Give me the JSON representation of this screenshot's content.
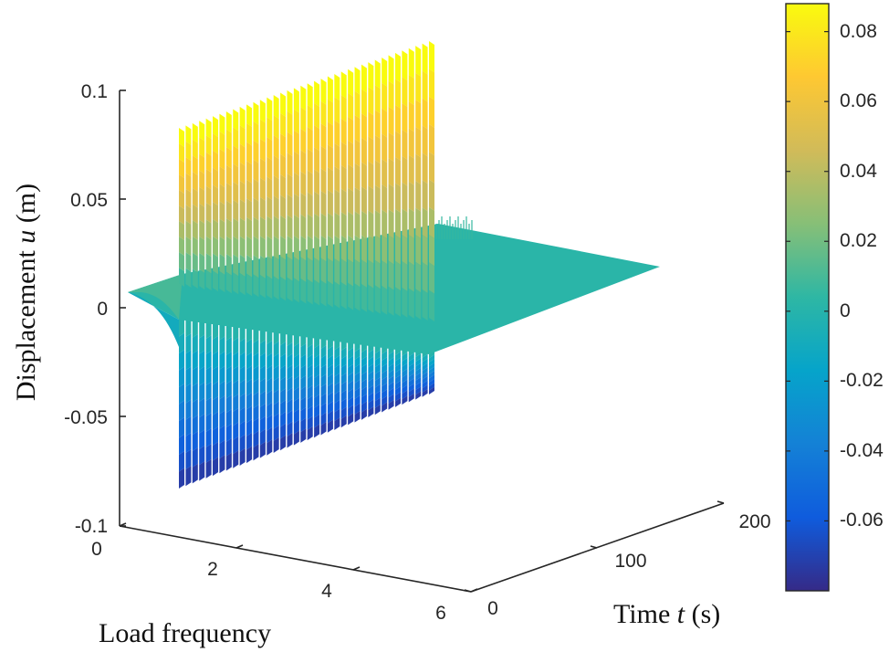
{
  "chart_data": {
    "type": "surface3d",
    "zlabel_text": "Displacement ",
    "zlabel_var": "u",
    "zlabel_unit": " (m)",
    "xlabel": "Load frequency",
    "ylabel_text": "Time ",
    "ylabel_var": "t",
    "ylabel_unit": " (s)",
    "xlim": [
      0,
      6
    ],
    "ylim": [
      0,
      200
    ],
    "zlim": [
      -0.1,
      0.1
    ],
    "x_ticks": [
      "0",
      "2",
      "4",
      "6"
    ],
    "y_ticks": [
      "0",
      "100",
      "200"
    ],
    "z_ticks": [
      "0.1",
      "0.05",
      "0",
      "-0.05",
      "-0.1"
    ],
    "colorbar": {
      "range": [
        -0.08,
        0.088
      ],
      "ticks": [
        "0.08",
        "0.06",
        "0.04",
        "0.02",
        "0",
        "-0.02",
        "-0.04",
        "-0.06"
      ],
      "colormap": "parula",
      "colors": [
        "#352a87",
        "#0f5cdd",
        "#1481d6",
        "#06a4ca",
        "#2eb7a4",
        "#87bf77",
        "#d1bb59",
        "#fec832",
        "#f9fb0e"
      ]
    },
    "surface": {
      "description_points": [
        {
          "frequency": 0.0,
          "time": 200,
          "displacement": 0.0
        },
        {
          "frequency": 1.0,
          "time": 0,
          "displacement_max": 0.083,
          "displacement_min": -0.083
        },
        {
          "frequency": 6.0,
          "time": 0,
          "displacement_max": 0.1,
          "displacement_min": -0.083
        },
        {
          "frequency": 6.0,
          "time": 200,
          "displacement": 0.0
        }
      ],
      "resonance_frequency": 1.0,
      "peak_count_visible": 38
    }
  }
}
